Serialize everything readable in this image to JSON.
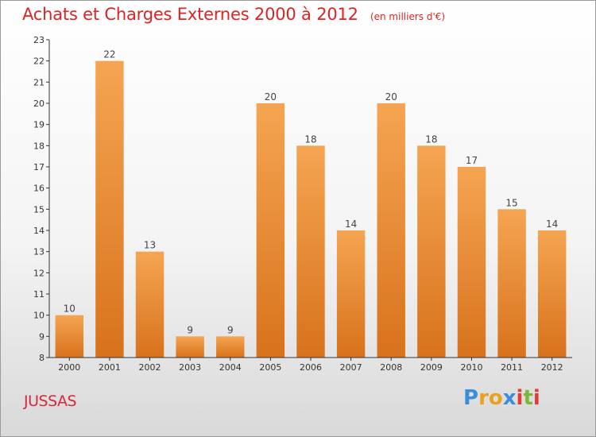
{
  "header": {
    "title": "Achats et Charges Externes 2000 à 2012",
    "subtitle": "(en milliers d'€)"
  },
  "footer": {
    "commune": "JUSSAS",
    "logo_text": "Proxiti"
  },
  "colors": {
    "bar_light": "#f5a552",
    "bar_dark": "#d8721c",
    "title": "#dd2424",
    "axis": "#333333"
  },
  "chart_data": {
    "type": "bar",
    "title": "Achats et Charges Externes 2000 à 2012",
    "subtitle": "(en milliers d'€)",
    "xlabel": "",
    "ylabel": "",
    "categories": [
      "2000",
      "2001",
      "2002",
      "2003",
      "2004",
      "2005",
      "2006",
      "2007",
      "2008",
      "2009",
      "2010",
      "2011",
      "2012"
    ],
    "values": [
      10,
      22,
      13,
      9,
      9,
      20,
      18,
      14,
      20,
      18,
      17,
      15,
      14
    ],
    "ylim": [
      8,
      23
    ],
    "yticks": [
      8,
      9,
      10,
      11,
      12,
      13,
      14,
      15,
      16,
      17,
      18,
      19,
      20,
      21,
      22,
      23
    ],
    "grid": false,
    "legend": "none"
  }
}
